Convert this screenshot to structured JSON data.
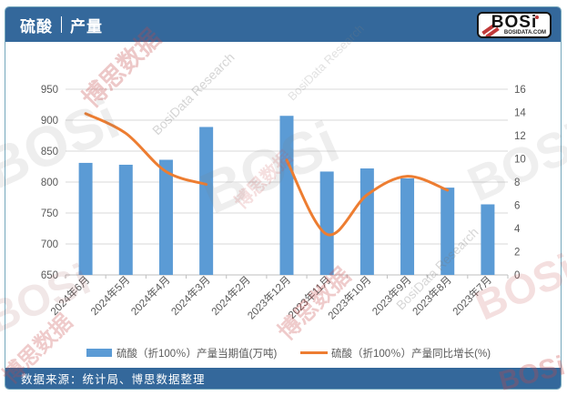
{
  "header": {
    "title_left": "硫酸",
    "title_right": "产量",
    "logo_text": "BOSi",
    "logo_domain": "BOSIDATA.COM"
  },
  "footer": {
    "source_text": "数据来源：统计局、博思数据整理"
  },
  "watermarks": {
    "brand_cn": "博思数据",
    "brand_en": "BosiData Research",
    "brand_logo": "BOSi"
  },
  "colors": {
    "header_bg": "#34689B",
    "bar": "#5B9BD5",
    "line": "#ED7D31",
    "grid": "#D9D9D9",
    "axis_line": "#BFBFBF",
    "axis_text": "#595959",
    "frame_border": "#74A7BC"
  },
  "chart_data": {
    "type": "bar",
    "subtype": "bar+line combo",
    "categories": [
      "2024年6月",
      "2024年5月",
      "2024年4月",
      "2024年3月",
      "2024年2月",
      "2023年12月",
      "2023年11月",
      "2023年10月",
      "2023年9月",
      "2023年8月",
      "2023年7月"
    ],
    "series": [
      {
        "name": "硫酸（折100％）产量当期值(万吨)",
        "type": "bar",
        "axis": "left",
        "color": "#5B9BD5",
        "values": [
          831,
          828,
          836,
          889,
          null,
          907,
          817,
          822,
          806,
          791,
          764
        ]
      },
      {
        "name": "硫酸（折100％）产量同比增长(%)",
        "type": "line",
        "axis": "right",
        "color": "#ED7D31",
        "values": [
          13.9,
          12.2,
          8.9,
          7.8,
          null,
          9.9,
          3.5,
          6.9,
          8.5,
          7.3,
          null
        ]
      }
    ],
    "left_axis": {
      "min": 650,
      "max": 950,
      "step": 50,
      "ticks": [
        650,
        700,
        750,
        800,
        850,
        900,
        950
      ]
    },
    "right_axis": {
      "min": 0,
      "max": 16,
      "step": 2,
      "ticks": [
        0,
        2,
        4,
        6,
        8,
        10,
        12,
        14,
        16
      ]
    },
    "grid": true,
    "x_tick_label_rotation": -45,
    "legend_position": "bottom",
    "title": "硫酸 | 产量"
  }
}
